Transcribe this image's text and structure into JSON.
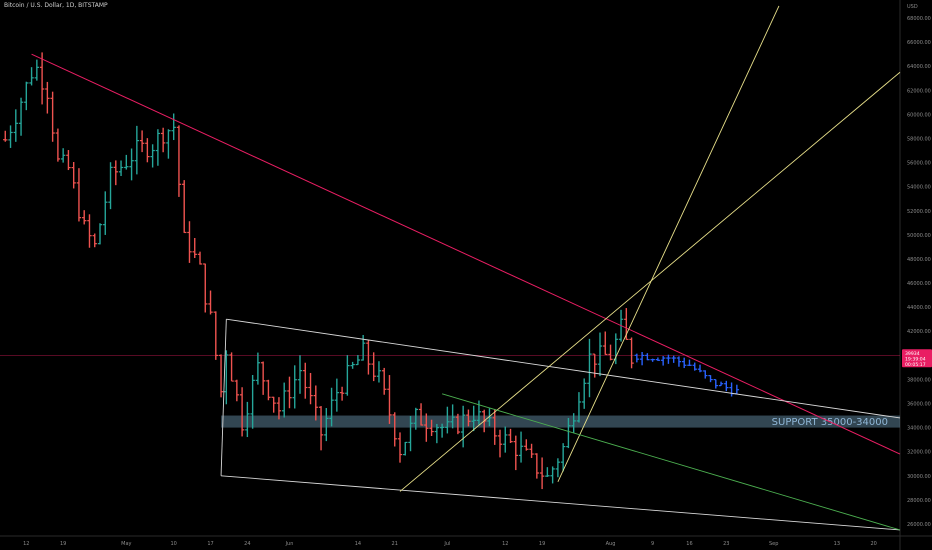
{
  "header": {
    "symbol_title": "Bitcoin / U.S. Dollar, 1D, BITSTAMP"
  },
  "colors": {
    "background": "#000000",
    "up": "#26a69a",
    "down": "#ef5350",
    "projection": "#2962ff",
    "downtrend": "#e91e63",
    "channel": "#d8d8d8",
    "fan": "#e8e08a",
    "green_line": "#4caf50",
    "support_zone": "#5b7f95",
    "support_text": "#8fb6d6",
    "price_tag": "#e91e63",
    "axis_text": "#8c8c8c"
  },
  "chart_data": {
    "type": "ohlc",
    "title": "Bitcoin / U.S. Dollar, 1D, BITSTAMP",
    "currency": "USD",
    "y_axis": {
      "range": [
        25000,
        68500
      ],
      "ticks": [
        26000,
        28000,
        30000,
        32000,
        34000,
        36000,
        38000,
        40000,
        42000,
        44000,
        46000,
        48000,
        50000,
        52000,
        54000,
        56000,
        58000,
        60000,
        62000,
        64000,
        66000,
        68000
      ],
      "tick_labels": [
        "26000.00",
        "28000.00",
        "30000.00",
        "32000.00",
        "34000.00",
        "36000.00",
        "38000.00",
        "40000.00",
        "42000.00",
        "44000.00",
        "46000.00",
        "48000.00",
        "50000.00",
        "52000.00",
        "54000.00",
        "56000.00",
        "58000.00",
        "60000.00",
        "62000.00",
        "64000.00",
        "66000.00",
        "68000.00"
      ]
    },
    "x_axis": {
      "range": [
        "2021-04-07",
        "2021-09-25"
      ],
      "ticks": [
        {
          "date": "2021-04-12",
          "label": "12"
        },
        {
          "date": "2021-04-19",
          "label": "19"
        },
        {
          "date": "2021-05-01",
          "label": "May"
        },
        {
          "date": "2021-05-10",
          "label": "10"
        },
        {
          "date": "2021-05-17",
          "label": "17"
        },
        {
          "date": "2021-05-24",
          "label": "24"
        },
        {
          "date": "2021-06-01",
          "label": "Jun"
        },
        {
          "date": "2021-06-14",
          "label": "14"
        },
        {
          "date": "2021-06-21",
          "label": "21"
        },
        {
          "date": "2021-07-01",
          "label": "Jul"
        },
        {
          "date": "2021-07-12",
          "label": "12"
        },
        {
          "date": "2021-07-19",
          "label": "19"
        },
        {
          "date": "2021-08-01",
          "label": "Aug"
        },
        {
          "date": "2021-08-09",
          "label": "9"
        },
        {
          "date": "2021-08-16",
          "label": "16"
        },
        {
          "date": "2021-08-23",
          "label": "23"
        },
        {
          "date": "2021-09-01",
          "label": "Sep"
        },
        {
          "date": "2021-09-13",
          "label": "13"
        },
        {
          "date": "2021-09-20",
          "label": "20"
        }
      ]
    },
    "price_anchors": [
      [
        "2021-04-08",
        57900
      ],
      [
        "2021-04-10",
        60000
      ],
      [
        "2021-04-13",
        63500
      ],
      [
        "2021-04-14",
        63800
      ],
      [
        "2021-04-16",
        62000
      ],
      [
        "2021-04-18",
        56000
      ],
      [
        "2021-04-20",
        55500
      ],
      [
        "2021-04-23",
        50500
      ],
      [
        "2021-04-25",
        49000
      ],
      [
        "2021-04-28",
        54800
      ],
      [
        "2021-05-03",
        57000
      ],
      [
        "2021-05-06",
        57500
      ],
      [
        "2021-05-08",
        58500
      ],
      [
        "2021-05-10",
        59000
      ],
      [
        "2021-05-12",
        49500
      ],
      [
        "2021-05-13",
        49200
      ],
      [
        "2021-05-15",
        47000
      ],
      [
        "2021-05-17",
        43000
      ],
      [
        "2021-05-19",
        37000
      ],
      [
        "2021-05-20",
        40500
      ],
      [
        "2021-05-23",
        34500
      ],
      [
        "2021-05-26",
        39000
      ],
      [
        "2021-05-30",
        35500
      ],
      [
        "2021-06-03",
        38800
      ],
      [
        "2021-06-07",
        33500
      ],
      [
        "2021-06-10",
        37000
      ],
      [
        "2021-06-15",
        40200
      ],
      [
        "2021-06-18",
        38000
      ],
      [
        "2021-06-21",
        33800
      ],
      [
        "2021-06-22",
        32200
      ],
      [
        "2021-06-25",
        34800
      ],
      [
        "2021-06-28",
        34500
      ],
      [
        "2021-07-01",
        33800
      ],
      [
        "2021-07-06",
        35200
      ],
      [
        "2021-07-10",
        33600
      ],
      [
        "2021-07-15",
        32000
      ],
      [
        "2021-07-20",
        29800
      ],
      [
        "2021-07-23",
        32300
      ],
      [
        "2021-07-26",
        37000
      ],
      [
        "2021-07-28",
        39800
      ],
      [
        "2021-08-01",
        40000
      ],
      [
        "2021-08-03",
        42200
      ],
      [
        "2021-08-05",
        39800
      ]
    ],
    "projection_anchors": [
      [
        "2021-08-06",
        40000
      ],
      [
        "2021-08-12",
        39800
      ],
      [
        "2021-08-16",
        39200
      ],
      [
        "2021-08-20",
        37800
      ],
      [
        "2021-08-25",
        37000
      ]
    ],
    "overlays": {
      "downtrend_line": {
        "from": [
          "2021-04-13",
          65000
        ],
        "to": [
          "2021-09-25",
          31800
        ]
      },
      "channel_upper": {
        "from": [
          "2021-05-20",
          43000
        ],
        "to": [
          "2021-09-25",
          34800
        ]
      },
      "channel_lower": {
        "from": [
          "2021-05-19",
          30000
        ],
        "to": [
          "2021-09-25",
          25500
        ]
      },
      "channel_left_edge": {
        "from": [
          "2021-05-20",
          43000
        ],
        "to": [
          "2021-05-19",
          30000
        ]
      },
      "fan_line_1": {
        "from": [
          "2021-06-22",
          28700
        ],
        "to": [
          "2021-09-25",
          63500
        ]
      },
      "fan_line_2": {
        "from": [
          "2021-07-22",
          29500
        ],
        "to": [
          "2021-09-02",
          69000
        ]
      },
      "green_line": {
        "from": [
          "2021-06-30",
          36800
        ],
        "to": [
          "2021-09-25",
          25500
        ]
      },
      "support_zone": {
        "start": "2021-05-19",
        "low": 34000,
        "high": 35000
      },
      "current_price_line": 40000
    },
    "support_label": "SUPPORT 35000-34000",
    "price_tag": {
      "price": 40000,
      "lines": [
        "39934",
        "19:39:04",
        "00:05:17"
      ]
    }
  }
}
